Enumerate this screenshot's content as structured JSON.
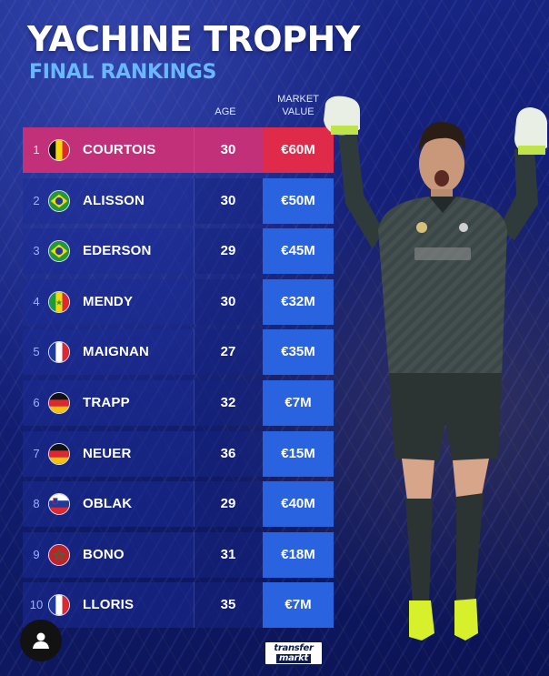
{
  "header": {
    "title": "YACHINE TROPHY",
    "subtitle": "FINAL RANKINGS"
  },
  "columns": {
    "age": "AGE",
    "market_value_line1": "MARKET",
    "market_value_line2": "VALUE"
  },
  "rankings": [
    {
      "rank": "1",
      "name": "COURTOIS",
      "age": "30",
      "value": "€60M",
      "flag": "belgium-flag-icon"
    },
    {
      "rank": "2",
      "name": "ALISSON",
      "age": "30",
      "value": "€50M",
      "flag": "brazil-flag-icon"
    },
    {
      "rank": "3",
      "name": "EDERSON",
      "age": "29",
      "value": "€45M",
      "flag": "brazil-flag-icon"
    },
    {
      "rank": "4",
      "name": "MENDY",
      "age": "30",
      "value": "€32M",
      "flag": "senegal-flag-icon"
    },
    {
      "rank": "5",
      "name": "MAIGNAN",
      "age": "27",
      "value": "€35M",
      "flag": "france-flag-icon"
    },
    {
      "rank": "6",
      "name": "TRAPP",
      "age": "32",
      "value": "€7M",
      "flag": "germany-flag-icon"
    },
    {
      "rank": "7",
      "name": "NEUER",
      "age": "36",
      "value": "€15M",
      "flag": "germany-flag-icon"
    },
    {
      "rank": "8",
      "name": "OBLAK",
      "age": "29",
      "value": "€40M",
      "flag": "slovenia-flag-icon"
    },
    {
      "rank": "9",
      "name": "BONO",
      "age": "31",
      "value": "€18M",
      "flag": "morocco-flag-icon"
    },
    {
      "rank": "10",
      "name": "LLORIS",
      "age": "35",
      "value": "€7M",
      "flag": "france-flag-icon"
    }
  ],
  "colors": {
    "highlight_row": "#c2307a",
    "highlight_value": "#e02a4a",
    "value_box": "#2a63e0",
    "subtitle": "#69b8ff"
  },
  "footer": {
    "logo_line1": "transfer",
    "logo_line2": "markt",
    "profile_icon": "user-icon"
  }
}
